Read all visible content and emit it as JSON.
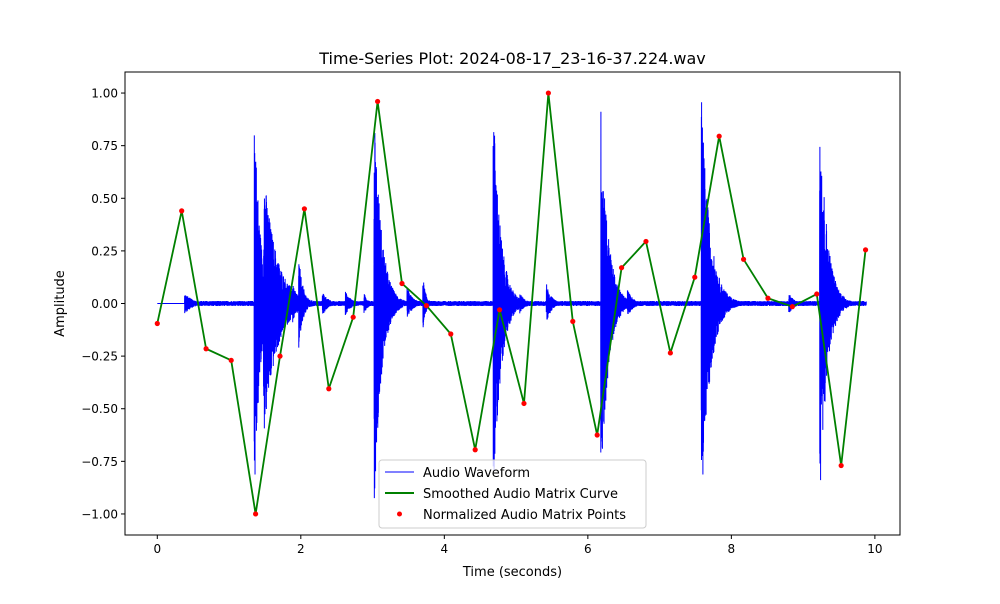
{
  "chart_data": {
    "type": "line",
    "title": "Time-Series Plot: 2024-08-17_23-16-37.224.wav",
    "xlabel": "Time (seconds)",
    "ylabel": "Amplitude",
    "xlim": [
      -0.45,
      10.35
    ],
    "ylim": [
      -1.1,
      1.1
    ],
    "xticks": [
      0,
      2,
      4,
      6,
      8,
      10
    ],
    "xtick_labels": [
      "0",
      "2",
      "4",
      "6",
      "8",
      "10"
    ],
    "yticks": [
      -1.0,
      -0.75,
      -0.5,
      -0.25,
      0.0,
      0.25,
      0.5,
      0.75,
      1.0
    ],
    "ytick_labels": [
      "−1.00",
      "−0.75",
      "−0.50",
      "−0.25",
      "0.00",
      "0.25",
      "0.50",
      "0.75",
      "1.00"
    ],
    "grid": false,
    "legend_position": "bottom-center",
    "series": [
      {
        "name": "Audio Waveform",
        "kind": "line",
        "color": "#0000ff",
        "x_start": 0,
        "x_end": 9.88,
        "silent_until": 0.38,
        "base_amplitude": 0.012,
        "events": [
          {
            "t": 0.38,
            "peak": 0.05,
            "decay": 0.12
          },
          {
            "t": 1.35,
            "peak": 1.0,
            "decay": 0.08
          },
          {
            "t": 1.48,
            "peak": 0.65,
            "decay": 0.18
          },
          {
            "t": 1.88,
            "peak": 0.1,
            "decay": 0.08
          },
          {
            "t": 1.97,
            "peak": 0.23,
            "decay": 0.06
          },
          {
            "t": 2.3,
            "peak": 0.06,
            "decay": 0.08
          },
          {
            "t": 2.62,
            "peak": 0.06,
            "decay": 0.08
          },
          {
            "t": 2.88,
            "peak": 0.05,
            "decay": 0.06
          },
          {
            "t": 3.02,
            "peak": 1.0,
            "decay": 0.1
          },
          {
            "t": 3.48,
            "peak": 0.08,
            "decay": 0.08
          },
          {
            "t": 3.7,
            "peak": 0.14,
            "decay": 0.04
          },
          {
            "t": 4.68,
            "peak": 1.0,
            "decay": 0.1
          },
          {
            "t": 5.05,
            "peak": 0.05,
            "decay": 0.08
          },
          {
            "t": 5.42,
            "peak": 0.1,
            "decay": 0.07
          },
          {
            "t": 6.18,
            "peak": 0.95,
            "decay": 0.1
          },
          {
            "t": 6.55,
            "peak": 0.07,
            "decay": 0.08
          },
          {
            "t": 7.58,
            "peak": 1.0,
            "decay": 0.12
          },
          {
            "t": 8.8,
            "peak": 0.05,
            "decay": 0.08
          },
          {
            "t": 9.23,
            "peak": 1.0,
            "decay": 0.1
          },
          {
            "t": 9.5,
            "peak": 0.05,
            "decay": 0.08
          }
        ]
      },
      {
        "name": "Smoothed Audio Matrix Curve",
        "kind": "line",
        "color": "#008000",
        "x": [
          0.0,
          0.34,
          0.68,
          1.03,
          1.37,
          1.71,
          2.05,
          2.39,
          2.73,
          3.07,
          3.41,
          3.75,
          4.09,
          4.43,
          4.77,
          5.11,
          5.45,
          5.79,
          6.13,
          6.47,
          6.81,
          7.15,
          7.49,
          7.83,
          8.17,
          8.51,
          8.85,
          9.19,
          9.53,
          9.87
        ],
        "values": [
          -0.095,
          0.44,
          -0.215,
          -0.27,
          -1.0,
          -0.25,
          0.45,
          -0.405,
          -0.065,
          0.96,
          0.095,
          -0.01,
          -0.145,
          -0.695,
          -0.03,
          -0.475,
          1.0,
          -0.085,
          -0.625,
          0.17,
          0.295,
          -0.235,
          0.125,
          0.795,
          0.21,
          0.025,
          -0.015,
          0.045,
          -0.77,
          0.255
        ]
      },
      {
        "name": "Normalized Audio Matrix Points",
        "kind": "scatter",
        "color": "#ff0000",
        "x": [
          0.0,
          0.34,
          0.68,
          1.03,
          1.37,
          1.71,
          2.05,
          2.39,
          2.73,
          3.07,
          3.41,
          3.75,
          4.09,
          4.43,
          4.77,
          5.11,
          5.45,
          5.79,
          6.13,
          6.47,
          6.81,
          7.15,
          7.49,
          7.83,
          8.17,
          8.51,
          8.85,
          9.19,
          9.53,
          9.87
        ],
        "values": [
          -0.095,
          0.44,
          -0.215,
          -0.27,
          -1.0,
          -0.25,
          0.45,
          -0.405,
          -0.065,
          0.96,
          0.095,
          -0.01,
          -0.145,
          -0.695,
          -0.03,
          -0.475,
          1.0,
          -0.085,
          -0.625,
          0.17,
          0.295,
          -0.235,
          0.125,
          0.795,
          0.21,
          0.025,
          -0.015,
          0.045,
          -0.77,
          0.255
        ]
      }
    ]
  }
}
